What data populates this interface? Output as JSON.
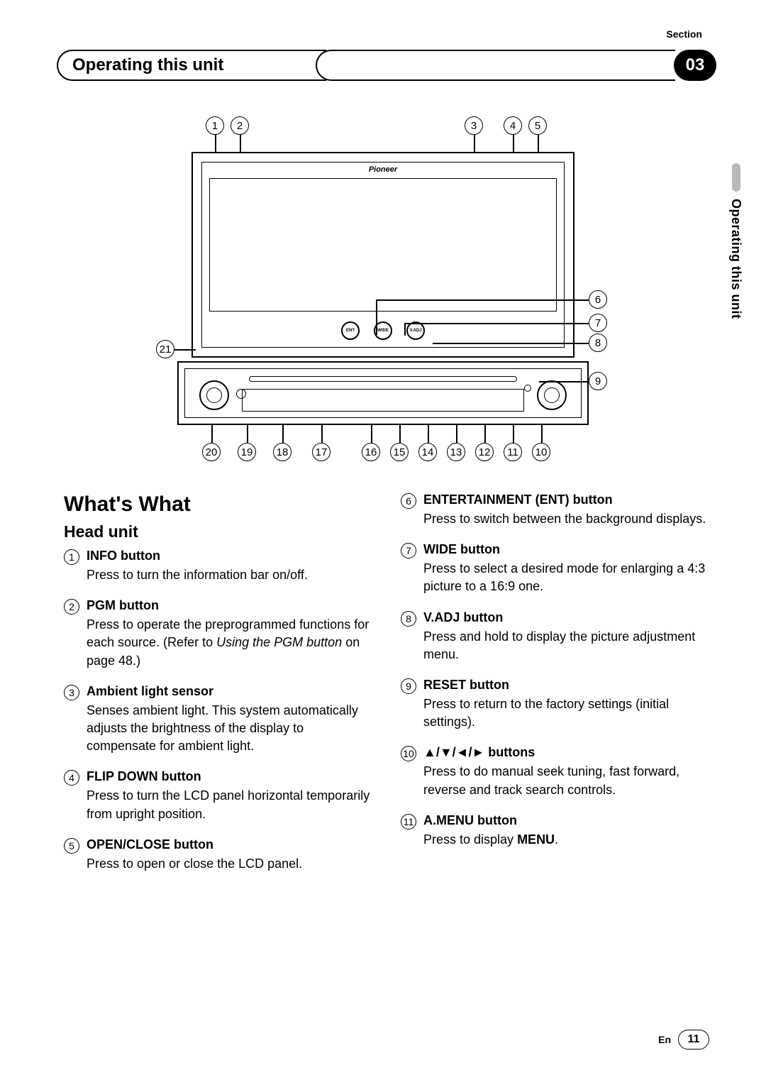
{
  "header": {
    "section_label": "Section",
    "title": "Operating this unit",
    "badge": "03"
  },
  "side_tab": "Operating this unit",
  "diagram": {
    "brand": "Pioneer",
    "btn_labels": [
      "ENT",
      "WIDE",
      "V.ADJ"
    ],
    "top_callouts": [
      "1",
      "2",
      "3",
      "4",
      "5"
    ],
    "right_callouts": [
      "6",
      "7",
      "8",
      "9"
    ],
    "left_callouts": [
      "21"
    ],
    "bottom_callouts": [
      "20",
      "19",
      "18",
      "17",
      "16",
      "15",
      "14",
      "13",
      "12",
      "11",
      "10"
    ]
  },
  "content": {
    "h1": "What's What",
    "h2": "Head unit",
    "left": [
      {
        "num": "1",
        "title": "INFO button",
        "body": "Press to turn the information bar on/off."
      },
      {
        "num": "2",
        "title": "PGM button",
        "body": "Press to operate the preprogrammed functions for each source. (Refer to <em>Using the PGM button</em> on page 48.)"
      },
      {
        "num": "3",
        "title": "Ambient light sensor",
        "body": "Senses ambient light. This system automatically adjusts the brightness of the display to compensate for ambient light."
      },
      {
        "num": "4",
        "title": "FLIP DOWN button",
        "body": "Press to turn the LCD panel horizontal temporarily from upright position."
      },
      {
        "num": "5",
        "title": "OPEN/CLOSE button",
        "body": "Press to open or close the LCD panel."
      }
    ],
    "right": [
      {
        "num": "6",
        "title": "ENTERTAINMENT (ENT) button",
        "body": "Press to switch between the background displays."
      },
      {
        "num": "7",
        "title": "WIDE button",
        "body": "Press to select a desired mode for enlarging a 4:3 picture to a 16:9 one."
      },
      {
        "num": "8",
        "title": "V.ADJ button",
        "body": "Press and hold to display the picture adjustment menu."
      },
      {
        "num": "9",
        "title": "RESET button",
        "body": "Press to return to the factory settings (initial settings)."
      },
      {
        "num": "10",
        "title": "▲/▼/◄/► buttons",
        "body": "Press to do manual seek tuning, fast forward, reverse and track search controls."
      },
      {
        "num": "11",
        "title": "A.MENU button",
        "body": "Press to display <strong>MENU</strong>."
      }
    ]
  },
  "footer": {
    "lang": "En",
    "page": "11"
  }
}
